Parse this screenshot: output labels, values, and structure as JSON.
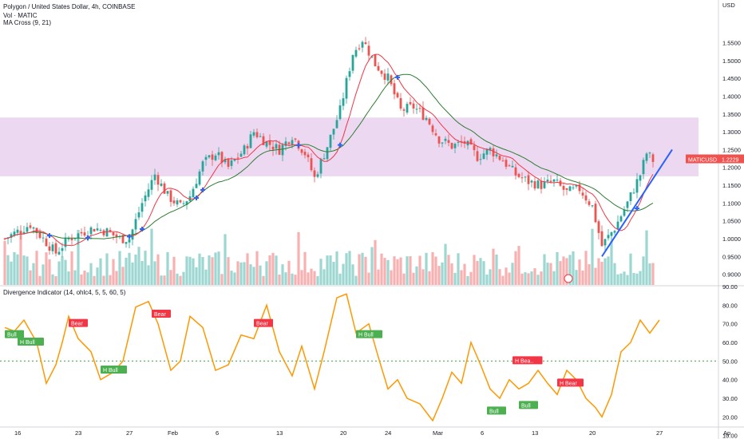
{
  "header": {
    "title": "Polygon / United States Dollar, 4h, COINBASE",
    "volume_label": "Vol · MATIC",
    "ma_label": "MA Cross (9, 21)",
    "currency": "USD"
  },
  "price_tag": {
    "symbol": "MATICUSD",
    "value": "1.2229"
  },
  "indicator": {
    "label": "Divergence Indicator (14, ohlc4, 5, 5, 60, 5)"
  },
  "colors": {
    "up": "#26a69a",
    "down": "#ef5350",
    "ma_fast": "#f23645",
    "ma_slow": "#2e7d32",
    "cross": "#2962ff",
    "zone": "#e1bee7",
    "trendline": "#2962ff",
    "osc": "#ff9800",
    "bull": "#4caf50",
    "bear": "#f23645",
    "midline": "#4caf50"
  },
  "chart_data": [
    {
      "type": "candlestick",
      "ylabel": "USD",
      "ylim": [
        0.87,
        1.67
      ],
      "y_ticks": [
        "1.5500",
        "1.5000",
        "1.4500",
        "1.4000",
        "1.3500",
        "1.3000",
        "1.2500",
        "1.2000",
        "1.1500",
        "1.1000",
        "1.0500",
        "1.0000",
        "0.9500",
        "0.9000"
      ],
      "x_ticks": [
        "16",
        "23",
        "27",
        "Feb",
        "6",
        "13",
        "20",
        "24",
        "Mar",
        "6",
        "13",
        "20",
        "27",
        "Ap"
      ],
      "price_points": [
        [
          0,
          1.0
        ],
        [
          4,
          1.02
        ],
        [
          8,
          1.04
        ],
        [
          12,
          1.0
        ],
        [
          16,
          0.96
        ],
        [
          20,
          1.0
        ],
        [
          25,
          1.02
        ],
        [
          28,
          1.03
        ],
        [
          32,
          1.02
        ],
        [
          36,
          1.0
        ],
        [
          39,
          1.0
        ],
        [
          43,
          1.1
        ],
        [
          47,
          1.18
        ],
        [
          51,
          1.12
        ],
        [
          55,
          1.09
        ],
        [
          58,
          1.12
        ],
        [
          62,
          1.21
        ],
        [
          66,
          1.24
        ],
        [
          70,
          1.2
        ],
        [
          75,
          1.25
        ],
        [
          78,
          1.3
        ],
        [
          82,
          1.27
        ],
        [
          86,
          1.25
        ],
        [
          90,
          1.29
        ],
        [
          94,
          1.24
        ],
        [
          97,
          1.17
        ],
        [
          101,
          1.26
        ],
        [
          105,
          1.36
        ],
        [
          109,
          1.52
        ],
        [
          112,
          1.56
        ],
        [
          116,
          1.49
        ],
        [
          120,
          1.45
        ],
        [
          124,
          1.36
        ],
        [
          128,
          1.37
        ],
        [
          132,
          1.34
        ],
        [
          136,
          1.28
        ],
        [
          140,
          1.26
        ],
        [
          144,
          1.27
        ],
        [
          148,
          1.23
        ],
        [
          152,
          1.25
        ],
        [
          156,
          1.22
        ],
        [
          160,
          1.18
        ],
        [
          164,
          1.16
        ],
        [
          168,
          1.15
        ],
        [
          172,
          1.16
        ],
        [
          176,
          1.13
        ],
        [
          180,
          1.14
        ],
        [
          184,
          1.09
        ],
        [
          187,
          0.98
        ],
        [
          191,
          1.03
        ],
        [
          195,
          1.1
        ],
        [
          199,
          1.18
        ],
        [
          201,
          1.24
        ],
        [
          203,
          1.22
        ]
      ],
      "zone": {
        "from": 1.175,
        "to": 1.34
      },
      "trendline": [
        [
          187,
          0.95
        ],
        [
          209,
          1.25
        ]
      ],
      "current_price": 1.2229
    },
    {
      "type": "line",
      "name_label": "Divergence Indicator (14, ohlc4, 5, 5, 60, 5)",
      "ylim": [
        15,
        90
      ],
      "y_ticks": [
        "90.00",
        "80.00",
        "70.00",
        "60.00",
        "50.00",
        "40.00",
        "30.00",
        "20.00",
        "10.00"
      ],
      "midline": 50,
      "points": [
        [
          0,
          68
        ],
        [
          3,
          66
        ],
        [
          6,
          72
        ],
        [
          10,
          60
        ],
        [
          13,
          38
        ],
        [
          16,
          48
        ],
        [
          18,
          60
        ],
        [
          20,
          74
        ],
        [
          23,
          62
        ],
        [
          27,
          55
        ],
        [
          30,
          40
        ],
        [
          34,
          44
        ],
        [
          37,
          50
        ],
        [
          41,
          79
        ],
        [
          45,
          82
        ],
        [
          48,
          70
        ],
        [
          52,
          45
        ],
        [
          55,
          50
        ],
        [
          58,
          74
        ],
        [
          62,
          68
        ],
        [
          66,
          45
        ],
        [
          70,
          48
        ],
        [
          74,
          64
        ],
        [
          78,
          62
        ],
        [
          82,
          80
        ],
        [
          86,
          55
        ],
        [
          90,
          42
        ],
        [
          93,
          58
        ],
        [
          97,
          35
        ],
        [
          100,
          55
        ],
        [
          104,
          84
        ],
        [
          107,
          86
        ],
        [
          110,
          65
        ],
        [
          114,
          70
        ],
        [
          117,
          52
        ],
        [
          120,
          35
        ],
        [
          123,
          40
        ],
        [
          126,
          30
        ],
        [
          130,
          27
        ],
        [
          134,
          18
        ],
        [
          137,
          30
        ],
        [
          140,
          44
        ],
        [
          143,
          38
        ],
        [
          146,
          60
        ],
        [
          149,
          48
        ],
        [
          152,
          35
        ],
        [
          155,
          30
        ],
        [
          158,
          40
        ],
        [
          161,
          35
        ],
        [
          164,
          38
        ],
        [
          167,
          45
        ],
        [
          170,
          38
        ],
        [
          173,
          32
        ],
        [
          176,
          45
        ],
        [
          179,
          40
        ],
        [
          182,
          30
        ],
        [
          185,
          25
        ],
        [
          187,
          20
        ],
        [
          190,
          32
        ],
        [
          193,
          55
        ],
        [
          196,
          60
        ],
        [
          199,
          72
        ],
        [
          202,
          65
        ],
        [
          205,
          72
        ]
      ],
      "labels": [
        {
          "text": "Bull",
          "kind": "bull",
          "at": [
            0,
            64
          ]
        },
        {
          "text": "H Bull",
          "kind": "bull",
          "at": [
            4,
            60
          ]
        },
        {
          "text": "Bear",
          "kind": "bear",
          "at": [
            20,
            70
          ]
        },
        {
          "text": "H Bull",
          "kind": "bull",
          "at": [
            30,
            45
          ]
        },
        {
          "text": "Bear",
          "kind": "bear",
          "at": [
            46,
            75
          ]
        },
        {
          "text": "Bear",
          "kind": "bear",
          "at": [
            78,
            70
          ]
        },
        {
          "text": "H Bull",
          "kind": "bull",
          "at": [
            110,
            64
          ]
        },
        {
          "text": "H Bea..",
          "kind": "bear",
          "at": [
            159,
            50
          ]
        },
        {
          "text": "Bull",
          "kind": "bull",
          "at": [
            151,
            23
          ]
        },
        {
          "text": "Bull",
          "kind": "bull",
          "at": [
            161,
            26
          ]
        },
        {
          "text": "H Bear",
          "kind": "bear",
          "at": [
            173,
            38
          ]
        }
      ]
    }
  ]
}
